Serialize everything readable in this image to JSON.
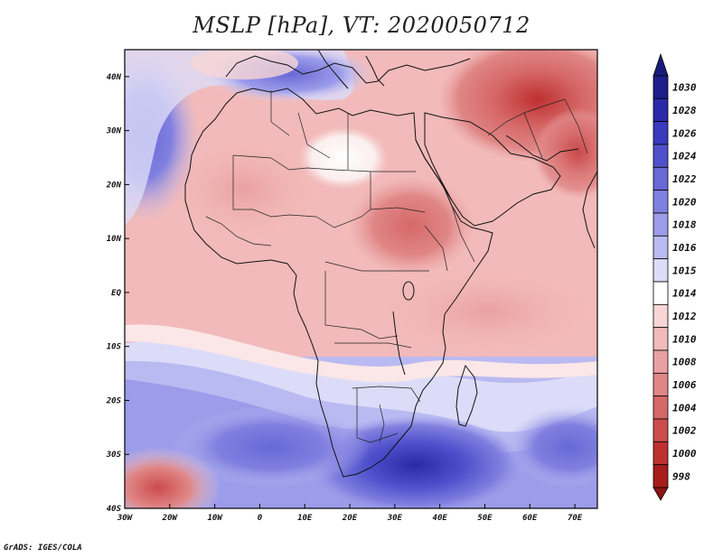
{
  "title": "MSLP [hPa], VT: 2020050712",
  "credit": "GrADS: IGES/COLA",
  "map": {
    "variable": "Mean sea level pressure",
    "units": "hPa",
    "region": "Africa",
    "lon_range": [
      -30,
      75
    ],
    "lat_range": [
      -40,
      45
    ],
    "lon_ticks": [
      {
        "value": -30,
        "label": "30W"
      },
      {
        "value": -20,
        "label": "20W"
      },
      {
        "value": -10,
        "label": "10W"
      },
      {
        "value": 0,
        "label": "0"
      },
      {
        "value": 10,
        "label": "10E"
      },
      {
        "value": 20,
        "label": "20E"
      },
      {
        "value": 30,
        "label": "30E"
      },
      {
        "value": 40,
        "label": "40E"
      },
      {
        "value": 50,
        "label": "50E"
      },
      {
        "value": 60,
        "label": "60E"
      },
      {
        "value": 70,
        "label": "70E"
      }
    ],
    "lat_ticks": [
      {
        "value": 40,
        "label": "40N"
      },
      {
        "value": 30,
        "label": "30N"
      },
      {
        "value": 20,
        "label": "20N"
      },
      {
        "value": 10,
        "label": "10N"
      },
      {
        "value": 0,
        "label": "EQ"
      },
      {
        "value": -10,
        "label": "10S"
      },
      {
        "value": -20,
        "label": "20S"
      },
      {
        "value": -30,
        "label": "30S"
      },
      {
        "value": -40,
        "label": "40S"
      }
    ]
  },
  "colorbar": {
    "labels": [
      "1030",
      "1028",
      "1026",
      "1024",
      "1022",
      "1020",
      "1018",
      "1016",
      "1015",
      "1014",
      "1012",
      "1010",
      "1008",
      "1006",
      "1004",
      "1002",
      "1000",
      "998"
    ],
    "colors": [
      "#1e1e8a",
      "#2a2aa8",
      "#3a3abf",
      "#5050cc",
      "#6868d6",
      "#8080e0",
      "#9c9cea",
      "#babaf2",
      "#dcdcf8",
      "#ffffff",
      "#f8d6d6",
      "#f2baba",
      "#eaa0a0",
      "#e08686",
      "#d66868",
      "#cc4c4c",
      "#bf3030",
      "#a81c1c"
    ],
    "top_color": "#1a1a7a",
    "bottom_color": "#8e1414"
  }
}
